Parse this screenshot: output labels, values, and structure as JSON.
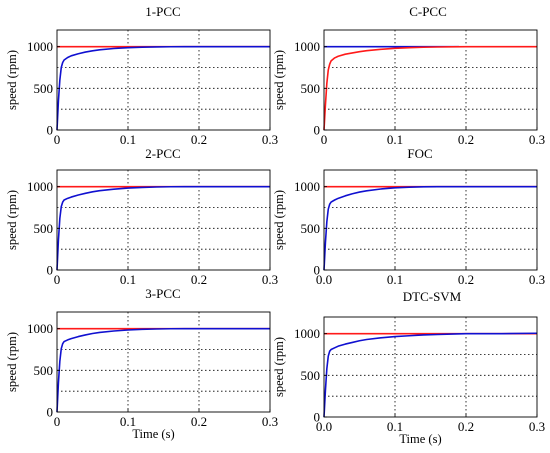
{
  "chart_data": [
    {
      "id": "p1",
      "type": "line",
      "title": "1-PCC",
      "ylabel": "speed (rpm)",
      "xlabel": "",
      "xlim": [
        0,
        0.3
      ],
      "ylim": [
        0,
        1200
      ],
      "xticks": [
        "0",
        "0.1",
        "0.2",
        "0.3"
      ],
      "yticks": [
        "0",
        "500",
        "1000"
      ],
      "grid": true,
      "series": [
        {
          "color": "#ff1a1a",
          "x": [
            0,
            0.3
          ],
          "y": [
            1000,
            1000
          ]
        },
        {
          "color": "#1010d0",
          "x": [
            0,
            0.002,
            0.004,
            0.006,
            0.008,
            0.01,
            0.015,
            0.02,
            0.03,
            0.04,
            0.05,
            0.06,
            0.08,
            0.1,
            0.12,
            0.14,
            0.16,
            0.18,
            0.2,
            0.25,
            0.3
          ],
          "y": [
            0,
            350,
            600,
            750,
            810,
            840,
            870,
            890,
            915,
            935,
            950,
            962,
            978,
            988,
            994,
            997,
            999,
            1000,
            1000,
            1000,
            1000
          ]
        }
      ]
    },
    {
      "id": "p2",
      "type": "line",
      "title": "C-PCC",
      "ylabel": "speed (rpm)",
      "xlabel": "",
      "xlim": [
        0,
        0.3
      ],
      "ylim": [
        0,
        1200
      ],
      "xticks": [
        "0",
        "0.1",
        "0.2",
        "0.3"
      ],
      "yticks": [
        "0",
        "500",
        "1000"
      ],
      "grid": true,
      "series": [
        {
          "color": "#1010d0",
          "x": [
            0,
            0.19
          ],
          "y": [
            1000,
            1000
          ]
        },
        {
          "color": "#ff1a1a",
          "x": [
            0,
            0.002,
            0.004,
            0.006,
            0.008,
            0.01,
            0.015,
            0.02,
            0.03,
            0.04,
            0.05,
            0.06,
            0.08,
            0.1,
            0.12,
            0.14,
            0.16,
            0.18,
            0.2,
            0.25,
            0.3
          ],
          "y": [
            0,
            300,
            560,
            720,
            790,
            830,
            865,
            885,
            910,
            925,
            940,
            952,
            968,
            980,
            988,
            993,
            996,
            998,
            1000,
            1000,
            1000
          ]
        }
      ]
    },
    {
      "id": "p3",
      "type": "line",
      "title": "2-PCC",
      "ylabel": "speed (rpm)",
      "xlabel": "",
      "xlim": [
        0,
        0.3
      ],
      "ylim": [
        0,
        1200
      ],
      "xticks": [
        "0",
        "0.1",
        "0.2",
        "0.3"
      ],
      "yticks": [
        "0",
        "500",
        "1000"
      ],
      "grid": true,
      "series": [
        {
          "color": "#ff1a1a",
          "x": [
            0,
            0.3
          ],
          "y": [
            1000,
            1000
          ]
        },
        {
          "color": "#1010d0",
          "x": [
            0,
            0.002,
            0.004,
            0.006,
            0.008,
            0.01,
            0.015,
            0.02,
            0.03,
            0.04,
            0.05,
            0.06,
            0.08,
            0.1,
            0.12,
            0.14,
            0.16,
            0.18,
            0.2,
            0.25,
            0.3
          ],
          "y": [
            0,
            360,
            620,
            760,
            815,
            840,
            860,
            875,
            900,
            920,
            938,
            952,
            970,
            983,
            991,
            996,
            999,
            1000,
            1000,
            1000,
            1000
          ]
        }
      ]
    },
    {
      "id": "p4",
      "type": "line",
      "title": "FOC",
      "ylabel": "speed (rpm)",
      "xlabel": "",
      "xlim": [
        0,
        0.3
      ],
      "ylim": [
        0,
        1200
      ],
      "xticks": [
        "0.0",
        "0.1",
        "0.2",
        "0.3"
      ],
      "yticks": [
        "0",
        "500",
        "1000"
      ],
      "grid": true,
      "series": [
        {
          "color": "#ff1a1a",
          "x": [
            0,
            0.3
          ],
          "y": [
            1000,
            1000
          ]
        },
        {
          "color": "#1010d0",
          "x": [
            0,
            0.002,
            0.004,
            0.006,
            0.008,
            0.01,
            0.015,
            0.02,
            0.03,
            0.04,
            0.05,
            0.06,
            0.08,
            0.1,
            0.12,
            0.14,
            0.16,
            0.18,
            0.2,
            0.25,
            0.3
          ],
          "y": [
            0,
            330,
            580,
            730,
            790,
            815,
            840,
            860,
            890,
            915,
            935,
            950,
            972,
            986,
            994,
            998,
            1000,
            1000,
            1000,
            1000,
            1000
          ]
        }
      ]
    },
    {
      "id": "p5",
      "type": "line",
      "title": "3-PCC",
      "ylabel": "speed (rpm)",
      "xlabel": "Time (s)",
      "xlim": [
        0,
        0.3
      ],
      "ylim": [
        0,
        1200
      ],
      "xticks": [
        "0",
        "0.1",
        "0.2",
        "0.3"
      ],
      "yticks": [
        "0",
        "500",
        "1000"
      ],
      "grid": true,
      "series": [
        {
          "color": "#ff1a1a",
          "x": [
            0,
            0.3
          ],
          "y": [
            1000,
            1000
          ]
        },
        {
          "color": "#1010d0",
          "x": [
            0,
            0.002,
            0.004,
            0.006,
            0.008,
            0.01,
            0.015,
            0.02,
            0.03,
            0.04,
            0.05,
            0.06,
            0.08,
            0.1,
            0.12,
            0.14,
            0.16,
            0.18,
            0.2,
            0.25,
            0.3
          ],
          "y": [
            0,
            350,
            610,
            760,
            820,
            845,
            865,
            880,
            905,
            925,
            942,
            955,
            972,
            984,
            992,
            996,
            999,
            1000,
            1000,
            1000,
            1000
          ]
        }
      ]
    },
    {
      "id": "p6",
      "type": "line",
      "title": "DTC-SVM",
      "ylabel": "speed (rpm)",
      "xlabel": "Time (s)",
      "xlim": [
        0,
        0.3
      ],
      "ylim": [
        0,
        1200
      ],
      "xticks": [
        "0.0",
        "0.1",
        "0.2",
        "0.3"
      ],
      "yticks": [
        "0",
        "500",
        "1000"
      ],
      "grid": true,
      "series": [
        {
          "color": "#ff1a1a",
          "x": [
            0,
            0.3
          ],
          "y": [
            1000,
            1000
          ]
        },
        {
          "color": "#1010d0",
          "x": [
            0,
            0.002,
            0.004,
            0.006,
            0.008,
            0.01,
            0.015,
            0.02,
            0.03,
            0.04,
            0.05,
            0.06,
            0.08,
            0.1,
            0.12,
            0.14,
            0.16,
            0.18,
            0.2,
            0.25,
            0.3
          ],
          "y": [
            0,
            320,
            580,
            730,
            790,
            810,
            830,
            850,
            875,
            895,
            915,
            930,
            950,
            965,
            975,
            985,
            990,
            995,
            1000,
            1000,
            1005
          ]
        }
      ]
    }
  ]
}
